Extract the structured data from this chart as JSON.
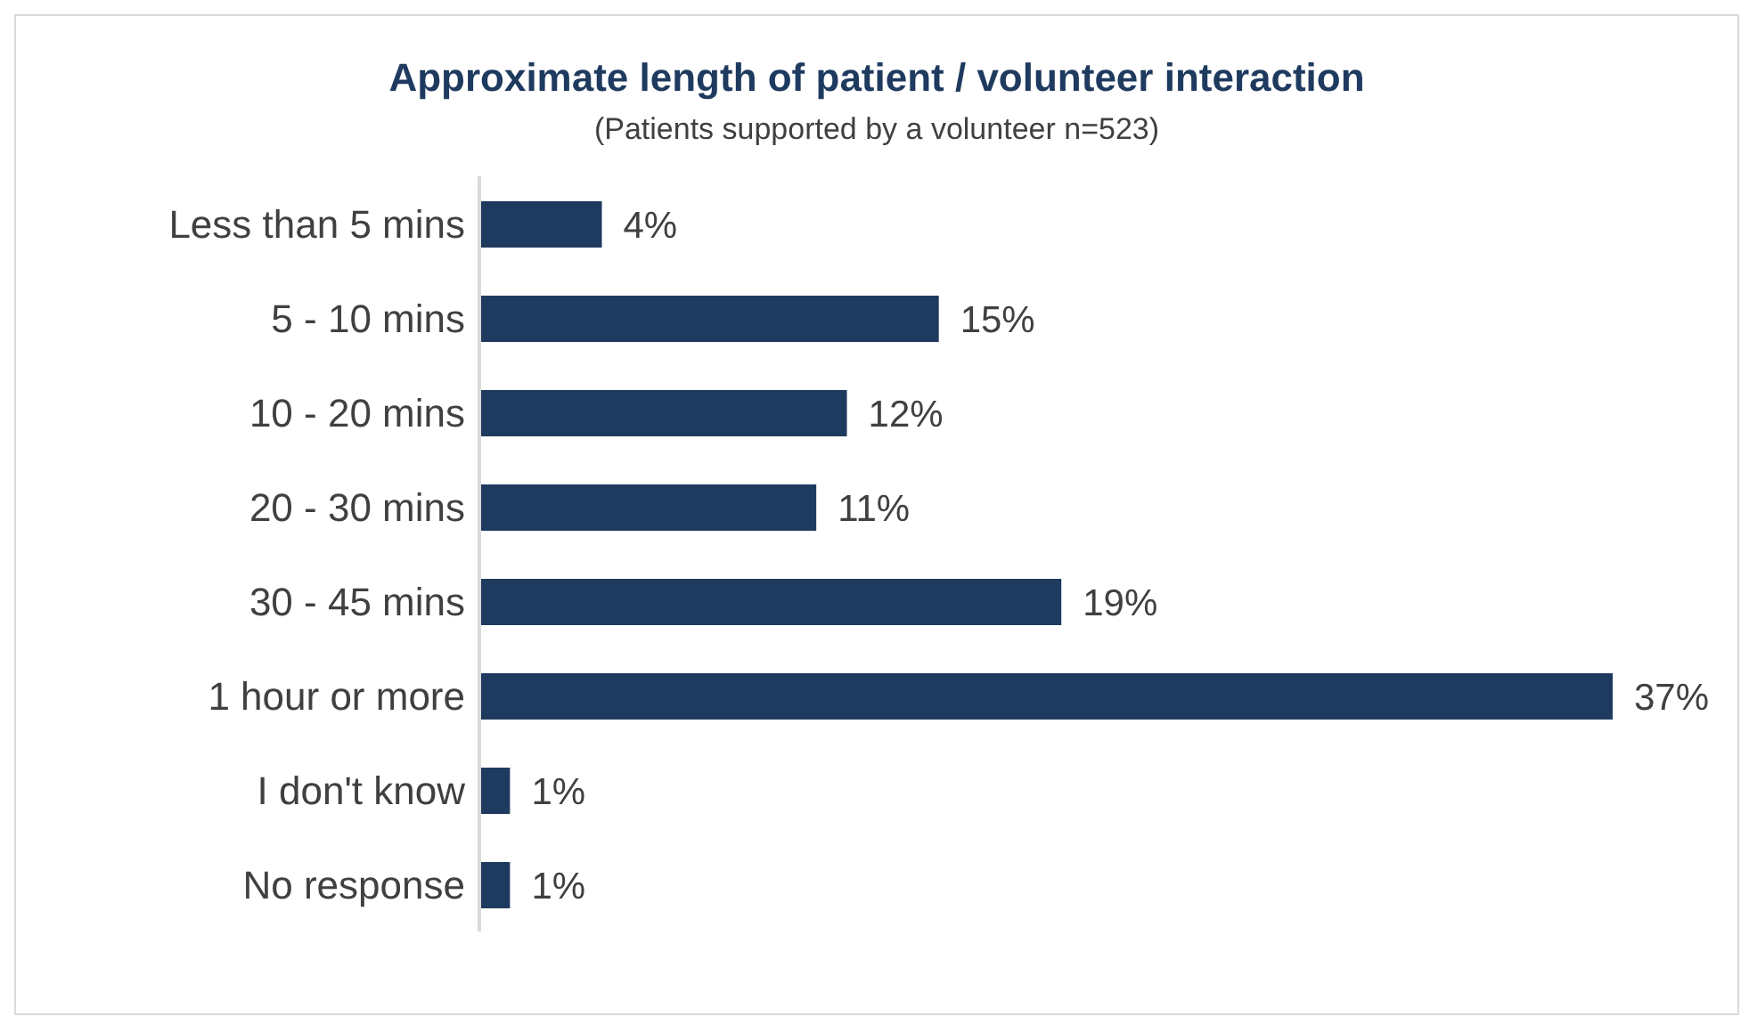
{
  "chart_data": {
    "type": "bar",
    "orientation": "horizontal",
    "title": "Approximate length of patient / volunteer interaction",
    "subtitle": "(Patients supported by a volunteer n=523)",
    "categories": [
      "Less than 5 mins",
      "5 - 10 mins",
      "10 - 20 mins",
      "20 - 30 mins",
      "30 - 45 mins",
      "1 hour or more",
      "I don't know",
      "No response"
    ],
    "values": [
      4,
      15,
      12,
      11,
      19,
      37,
      1,
      1
    ],
    "value_labels": [
      "4%",
      "15%",
      "12%",
      "11%",
      "19%",
      "37%",
      "1%",
      "1%"
    ],
    "color": "#1f3a5f"
  }
}
